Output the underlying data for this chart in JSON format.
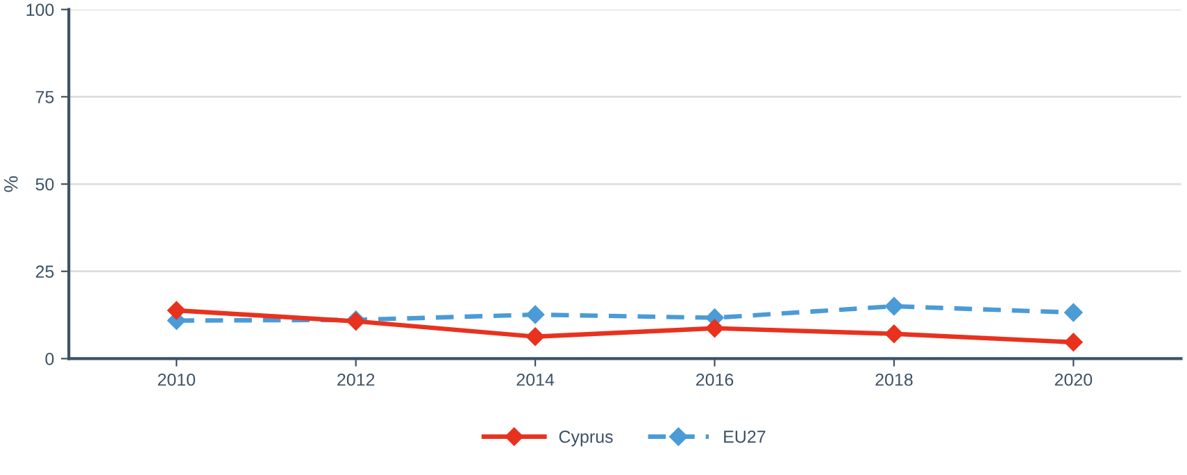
{
  "chart_data": {
    "type": "line",
    "ylabel": "%",
    "x": [
      2010,
      2012,
      2014,
      2016,
      2018,
      2020
    ],
    "series": [
      {
        "name": "Cyprus",
        "color": "#e8321e",
        "values": [
          13.8,
          10.7,
          6.3,
          8.7,
          7.1,
          4.7
        ],
        "line_style": "solid"
      },
      {
        "name": "EU27",
        "color": "#4a9bd6",
        "values": [
          10.9,
          11.1,
          12.6,
          11.7,
          15.0,
          13.2
        ],
        "line_style": "dashed"
      }
    ],
    "marker": "diamond",
    "xlim": [
      2008.8,
      2021.2
    ],
    "ylim": [
      0,
      100
    ],
    "xticks": [
      2010,
      2012,
      2014,
      2016,
      2018,
      2020
    ],
    "yticks": [
      0,
      25,
      50,
      75,
      100
    ],
    "grid": "y",
    "legend": "bottom"
  }
}
